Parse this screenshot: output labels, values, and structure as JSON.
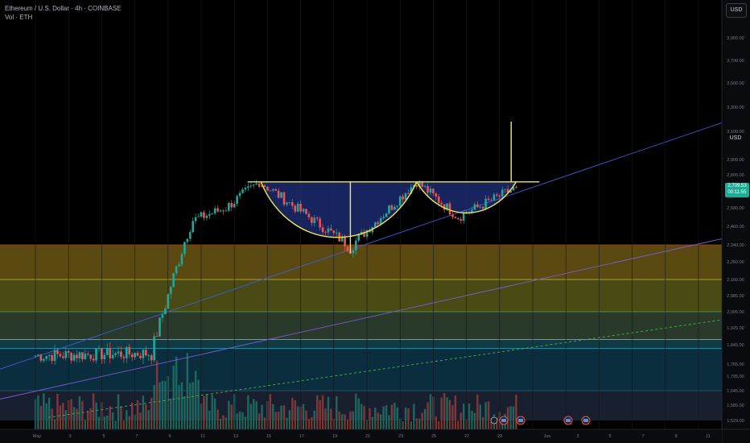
{
  "header": {
    "title": "Ethereum / U.S. Dollar · 4h · COINBASE",
    "volume_label": "Vol · ETH"
  },
  "currency_button": "USD",
  "currency_axis_label": "USD",
  "last_price": {
    "value": "2,709.53",
    "countdown": "00:11:55"
  },
  "price_axis": {
    "ticks": [
      "3,900.00",
      "3,700.00",
      "3,500.00",
      "3,300.00",
      "3,100.00",
      "2,900.00",
      "2,800.00",
      "2,580.00",
      "2,460.00",
      "2,340.00",
      "2,260.00",
      "2,160.00",
      "2,085.00",
      "2,005.00",
      "1,925.00",
      "1,845.00",
      "1,765.00",
      "1,705.00",
      "1,645.00",
      "1,585.00",
      "1,529.00"
    ]
  },
  "time_axis": {
    "ticks": [
      "May",
      "3",
      "5",
      "7",
      "9",
      "11",
      "13",
      "15",
      "17",
      "19",
      "21",
      "23",
      "25",
      "27",
      "29",
      "Jun",
      "3",
      "5",
      "7",
      "9",
      "11"
    ]
  },
  "colors": {
    "up": "#26a69a",
    "down": "#ef5350",
    "pattern": "#f5e94a",
    "cup_fill": "#1c2a6e",
    "trendline": "#3d5bd6"
  },
  "chart_data": {
    "type": "candlestick",
    "symbol": "ETHUSD",
    "interval": "4h",
    "exchange": "COINBASE",
    "price_range": [
      1529,
      3900
    ],
    "close_segments": [
      {
        "from_day": 0,
        "to_day": 7,
        "start": 1800,
        "end": 1810,
        "note": "sideways range"
      },
      {
        "from_day": 7,
        "to_day": 9.5,
        "start": 1810,
        "end": 2500,
        "note": "sharp rally"
      },
      {
        "from_day": 9.5,
        "to_day": 11.5,
        "start": 2500,
        "end": 2580
      },
      {
        "from_day": 11.5,
        "to_day": 13.5,
        "start": 2580,
        "end": 2750
      },
      {
        "from_day": 13.5,
        "to_day": 19,
        "start": 2750,
        "end": 2330,
        "note": "cup left side"
      },
      {
        "from_day": 19,
        "to_day": 23,
        "start": 2330,
        "end": 2750,
        "note": "cup right side"
      },
      {
        "from_day": 23,
        "to_day": 25.5,
        "start": 2750,
        "end": 2520,
        "note": "handle"
      },
      {
        "from_day": 25.5,
        "to_day": 29,
        "start": 2520,
        "end": 2709.53
      }
    ],
    "zones": [
      {
        "from": 2340,
        "to": 2160,
        "color": "#5a4a12"
      },
      {
        "from": 2160,
        "to": 2005,
        "color": "#4a4a14"
      },
      {
        "from": 2005,
        "to": 1870,
        "color": "#2a3a2a"
      },
      {
        "from": 1870,
        "to": 1830,
        "color": "#123a44"
      },
      {
        "from": 1830,
        "to": 1645,
        "color": "#0b2e3e"
      },
      {
        "from": 1645,
        "to": 1529,
        "color": "#182030"
      }
    ],
    "pattern": {
      "name": "cup and handle",
      "rim_price": 2750,
      "cup_bottom_price": 2330,
      "target_price": 3180
    },
    "last_price": 2709.53
  }
}
